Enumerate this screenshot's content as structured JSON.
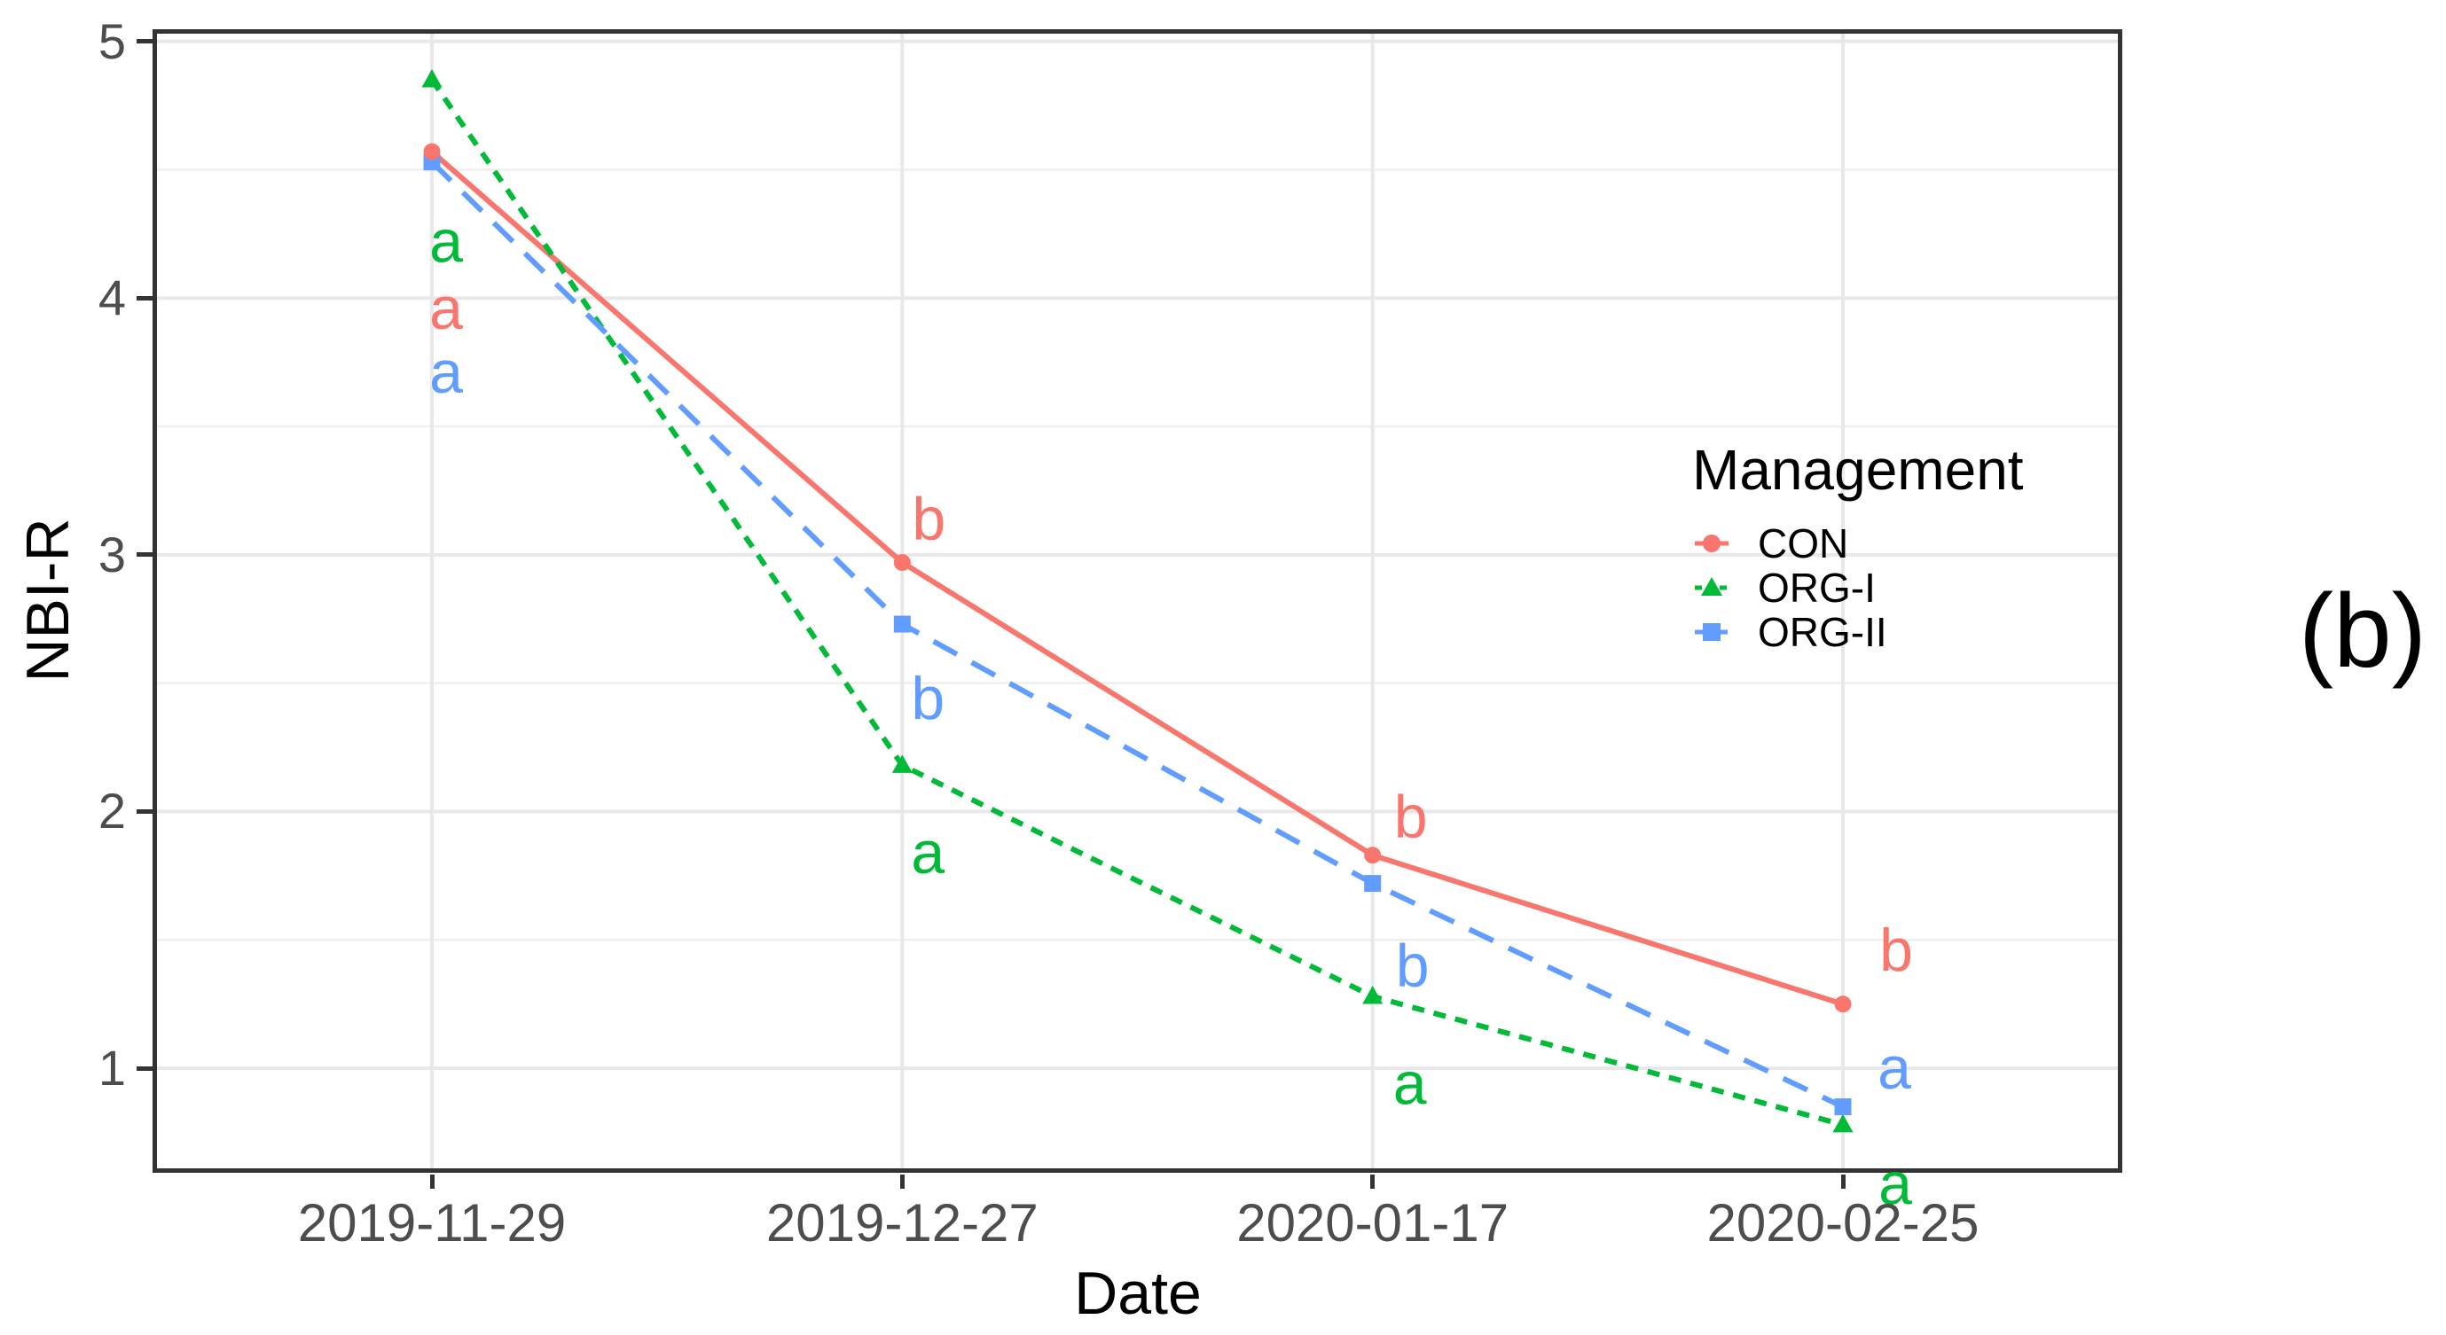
{
  "figure_label": "(b)",
  "legend": {
    "title": "Management",
    "items": [
      {
        "label": "CON",
        "color": "#F8766D",
        "marker": "circle",
        "linestyle": "solid"
      },
      {
        "label": "ORG-I",
        "color": "#00BA38",
        "marker": "triangle",
        "linestyle": "dotted"
      },
      {
        "label": "ORG-II",
        "color": "#619CFF",
        "marker": "square",
        "linestyle": "dashed"
      }
    ]
  },
  "chart_data": {
    "type": "line",
    "title": "",
    "xlabel": "Date",
    "ylabel": "NBI-R",
    "categories": [
      "2019-11-29",
      "2019-12-27",
      "2020-01-17",
      "2020-02-25"
    ],
    "y_ticks": [
      5,
      4,
      3,
      2,
      1
    ],
    "y_minor_ticks": [
      4.5,
      3.5,
      2.5,
      1.5
    ],
    "ylim": [
      0.59,
      5.05
    ],
    "grid": "on",
    "legend_position": "right-inside",
    "colors": {
      "grid_major": "#E8E8E8",
      "grid_minor": "#EFEFEF",
      "panel_border": "#333333",
      "tick_mark": "#333333",
      "tick_text": "#4d4d4d",
      "title_text": "#000000"
    },
    "series": [
      {
        "name": "CON",
        "color": "#F8766D",
        "marker": "circle",
        "linestyle": "solid",
        "values": [
          4.57,
          2.97,
          1.83,
          1.25
        ],
        "sig_letters": [
          {
            "x_index": 0,
            "y": 3.96,
            "text": "a",
            "dx": 16
          },
          {
            "x_index": 1,
            "y": 3.14,
            "text": "b",
            "dx": 30
          },
          {
            "x_index": 2,
            "y": 1.98,
            "text": "b",
            "dx": 43
          },
          {
            "x_index": 3,
            "y": 1.46,
            "text": "b",
            "dx": 60
          }
        ]
      },
      {
        "name": "ORG-I",
        "color": "#00BA38",
        "marker": "triangle",
        "linestyle": "dotted",
        "values": [
          4.85,
          2.18,
          1.28,
          0.78
        ],
        "sig_letters": [
          {
            "x_index": 0,
            "y": 4.22,
            "text": "a",
            "dx": 16
          },
          {
            "x_index": 1,
            "y": 1.84,
            "text": "a",
            "dx": 29
          },
          {
            "x_index": 2,
            "y": 0.94,
            "text": "a",
            "dx": 42
          },
          {
            "x_index": 3,
            "y": 0.55,
            "text": "a",
            "dx": 59
          }
        ]
      },
      {
        "name": "ORG-II",
        "color": "#619CFF",
        "marker": "square",
        "linestyle": "dashed",
        "values": [
          4.53,
          2.73,
          1.72,
          0.85
        ],
        "sig_letters": [
          {
            "x_index": 0,
            "y": 3.71,
            "text": "a",
            "dx": 16
          },
          {
            "x_index": 1,
            "y": 2.44,
            "text": "b",
            "dx": 29
          },
          {
            "x_index": 2,
            "y": 1.4,
            "text": "b",
            "dx": 45
          },
          {
            "x_index": 3,
            "y": 1.0,
            "text": "a",
            "dx": 58
          }
        ]
      }
    ]
  }
}
